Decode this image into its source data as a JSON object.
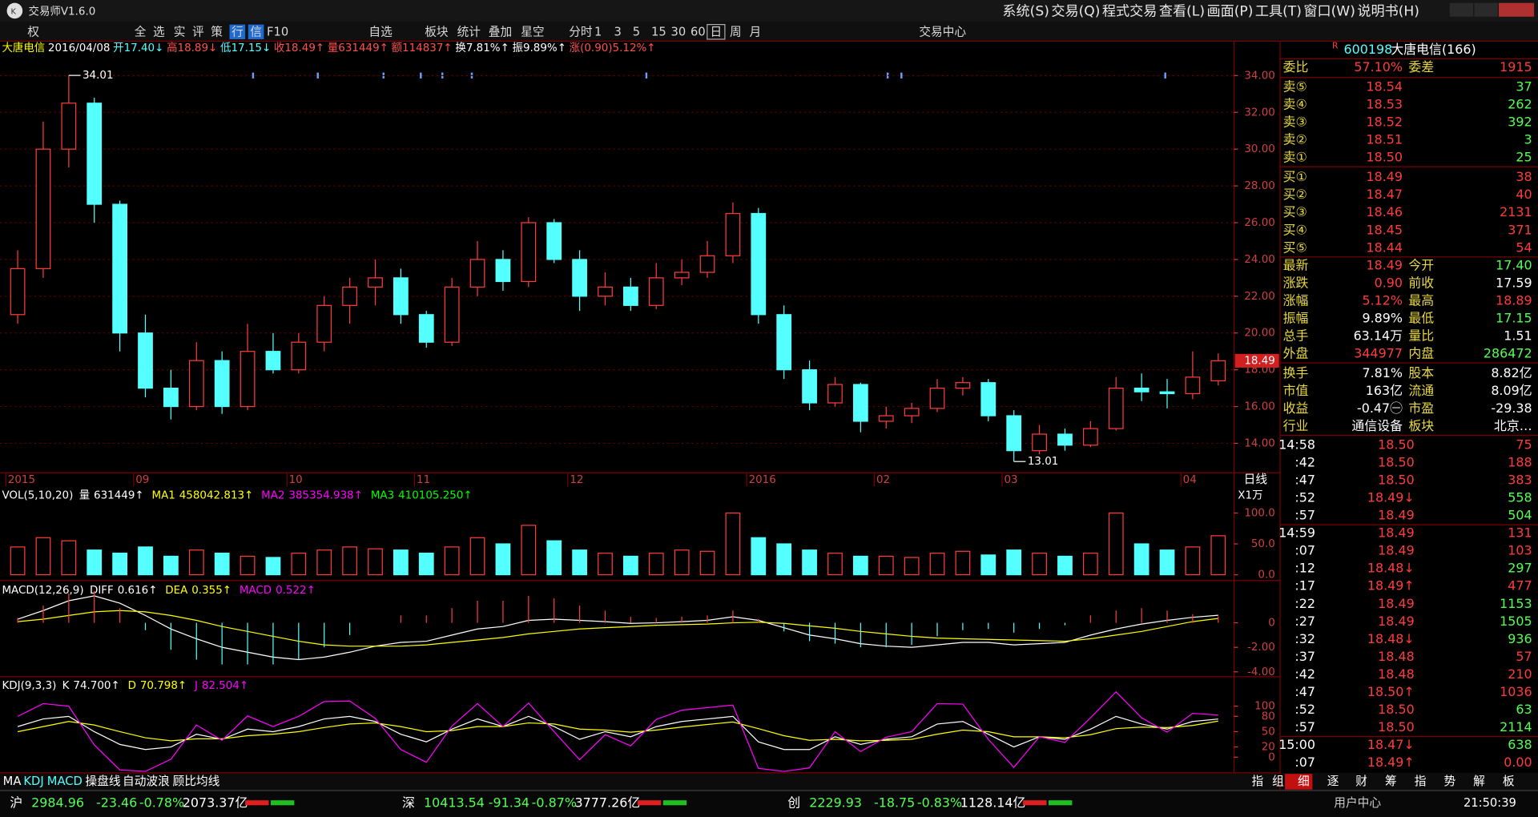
{
  "window": {
    "title": "交易师V1.6.0",
    "menu": [
      "系统(S)",
      "交易(Q)",
      "程式交易",
      "查看(L)",
      "画面(P)",
      "工具(T)",
      "窗口(W)",
      "说明书(H)"
    ]
  },
  "toolbar": [
    "权",
    "全",
    "选",
    "实",
    "评",
    "策",
    "行",
    "信",
    "F10",
    "自选",
    "板块",
    "统计",
    "叠加",
    "星空",
    "分时",
    "1",
    "3",
    "5",
    "15",
    "30",
    "60",
    "日",
    "周",
    "月",
    "交易中心"
  ],
  "chart_data": [
    {
      "type": "candlestick",
      "header": [
        {
          "text": "大唐电信",
          "color": "#ffff00"
        },
        {
          "text": "2016/04/08",
          "color": "#ffffff"
        },
        {
          "text": "开17.40↓",
          "color": "#54ffff"
        },
        {
          "text": "高18.89↓",
          "color": "#ff5050"
        },
        {
          "text": "低17.15↓",
          "color": "#54ffff"
        },
        {
          "text": "收18.49↑",
          "color": "#ff5050"
        },
        {
          "text": "量631449↑",
          "color": "#ff5050"
        },
        {
          "text": "额114837↑",
          "color": "#ff5050"
        },
        {
          "text": "换7.81%↑",
          "color": "#ffffff"
        },
        {
          "text": "振9.89%↑",
          "color": "#ffffff"
        },
        {
          "text": "涨(0.90)5.12%↑",
          "color": "#ff5050"
        }
      ],
      "period_label": "日线",
      "categories": [
        "2015",
        null,
        null,
        null,
        null,
        "09",
        null,
        null,
        null,
        null,
        null,
        "10",
        null,
        null,
        null,
        null,
        "11",
        null,
        null,
        null,
        null,
        null,
        "12",
        null,
        null,
        null,
        null,
        null,
        null,
        "2016",
        null,
        null,
        null,
        null,
        "02",
        null,
        null,
        null,
        null,
        "03",
        null,
        null,
        null,
        null,
        null,
        null,
        "04",
        null
      ],
      "open": [
        21,
        23.5,
        30,
        32.5,
        27,
        20,
        17,
        16,
        18.5,
        16,
        19,
        18,
        19.5,
        21.5,
        22.5,
        23,
        21,
        19.5,
        22.5,
        24,
        22.8,
        26,
        24,
        22,
        22.5,
        21.5,
        23,
        23.3,
        24.2,
        26.5,
        21,
        18,
        16.2,
        17.2,
        15.2,
        15.5,
        15.9,
        17,
        17.3,
        15.5,
        13.6,
        14.5,
        13.9,
        14.8,
        17,
        16.8,
        16.7,
        17.4
      ],
      "high": [
        24.5,
        31.5,
        34.01,
        32.8,
        27.2,
        21,
        18,
        19.5,
        19,
        20.5,
        20,
        20,
        22,
        23,
        24,
        23.5,
        21.2,
        23,
        25,
        24.5,
        26.3,
        26.2,
        24.5,
        23.3,
        23,
        23.8,
        24,
        25,
        27.1,
        26.8,
        21.5,
        18.5,
        17.6,
        17.3,
        16,
        16.2,
        17.5,
        17.6,
        17.5,
        15.8,
        15,
        14.8,
        15.2,
        17.6,
        17.8,
        17.5,
        19,
        18.89
      ],
      "low": [
        20.5,
        23,
        29,
        26,
        19,
        16.5,
        15.3,
        15.8,
        15.6,
        15.8,
        17.8,
        17.8,
        19,
        20.5,
        21.5,
        20.5,
        19.2,
        19.3,
        22,
        22.3,
        22.5,
        23.8,
        21.2,
        21.5,
        21.2,
        21.3,
        22.6,
        23,
        23.8,
        20.5,
        17.5,
        15.8,
        16,
        14.6,
        14.8,
        15.1,
        15.7,
        16.6,
        15.2,
        13.01,
        13.4,
        13.6,
        13.8,
        14.7,
        16.3,
        15.9,
        16.4,
        17.15
      ],
      "close": [
        23.5,
        30,
        32.5,
        27,
        20,
        17,
        16,
        18.5,
        16,
        19,
        18,
        19.5,
        21.5,
        22.5,
        23,
        21,
        19.5,
        22.5,
        24,
        22.8,
        26,
        24,
        22,
        22.5,
        21.5,
        23,
        23.3,
        24.2,
        26.5,
        21,
        18,
        16.2,
        17.2,
        15.2,
        15.5,
        15.9,
        17,
        17.3,
        15.5,
        13.6,
        14.5,
        13.9,
        14.8,
        17,
        16.8,
        16.7,
        17.6,
        18.49
      ],
      "up_color": "#ff3c3c",
      "down_color": "#54ffff",
      "ylim": [
        12.4,
        35.87
      ],
      "yticks": [
        {
          "value": 14,
          "label": "14.00"
        },
        {
          "value": 16,
          "label": "16.00"
        },
        {
          "value": 18,
          "label": "18.00"
        },
        {
          "value": 20,
          "label": "20.00"
        },
        {
          "value": 22,
          "label": "22.00"
        },
        {
          "value": 24,
          "label": "24.00"
        },
        {
          "value": 26,
          "label": "26.00"
        },
        {
          "value": 28,
          "label": "28.00"
        },
        {
          "value": 30,
          "label": "30.00"
        },
        {
          "value": 32,
          "label": "32.00"
        },
        {
          "value": 34,
          "label": "34.00"
        }
      ],
      "grid": true
    },
    {
      "type": "bar",
      "title": "VOL(5,10,20)",
      "legend": [
        {
          "name": "量",
          "value": "631449↑",
          "color": "#ffffff"
        },
        {
          "name": "MA1",
          "value": "458042.813↑",
          "color": "#ffff00"
        },
        {
          "name": "MA2",
          "value": "385354.938↑",
          "color": "#ff00ff"
        },
        {
          "name": "MA3",
          "value": "410105.250↑",
          "color": "#00ff00"
        }
      ],
      "unit_label": "X1万",
      "values": [
        45,
        60,
        55,
        40,
        35,
        45,
        30,
        40,
        35,
        30,
        28,
        35,
        40,
        45,
        42,
        40,
        35,
        45,
        60,
        50,
        80,
        55,
        40,
        35,
        30,
        35,
        40,
        38,
        100,
        60,
        50,
        40,
        35,
        30,
        30,
        28,
        35,
        38,
        32,
        40,
        35,
        30,
        35,
        100,
        50,
        40,
        45,
        63.1449
      ],
      "ylim": [
        -9.5,
        142.9
      ],
      "yticks": [
        {
          "value": 0,
          "label": "0.0"
        },
        {
          "value": 50,
          "label": "50.0"
        },
        {
          "value": 100,
          "label": "100.0"
        }
      ]
    },
    {
      "type": "line",
      "title": "MACD(12,26,9)",
      "series": [
        {
          "name": "DIFF",
          "legend_value": "0.616↑",
          "color": "#ffffff",
          "values": [
            0.3,
            1.0,
            1.8,
            2.2,
            1.6,
            0.6,
            -0.5,
            -1.3,
            -2.0,
            -2.4,
            -2.8,
            -3.0,
            -2.8,
            -2.4,
            -1.9,
            -1.6,
            -1.5,
            -1.0,
            -0.5,
            -0.3,
            0.2,
            0.3,
            0.2,
            0.1,
            -0.05,
            0.0,
            0.1,
            0.2,
            0.5,
            0.2,
            -0.4,
            -1.0,
            -1.3,
            -1.7,
            -1.9,
            -2.0,
            -1.8,
            -1.6,
            -1.6,
            -1.8,
            -1.7,
            -1.6,
            -1.0,
            -0.5,
            -0.1,
            0.2,
            0.45,
            0.616
          ]
        },
        {
          "name": "DEA",
          "legend_value": "0.355↑",
          "color": "#ffff00",
          "values": [
            0.1,
            0.3,
            0.6,
            0.9,
            1.0,
            0.9,
            0.6,
            0.2,
            -0.3,
            -0.7,
            -1.1,
            -1.5,
            -1.8,
            -1.9,
            -1.9,
            -1.9,
            -1.8,
            -1.6,
            -1.4,
            -1.2,
            -0.9,
            -0.7,
            -0.5,
            -0.4,
            -0.3,
            -0.2,
            -0.15,
            -0.1,
            0.0,
            0.05,
            -0.05,
            -0.25,
            -0.45,
            -0.7,
            -0.9,
            -1.1,
            -1.25,
            -1.3,
            -1.35,
            -1.4,
            -1.45,
            -1.5,
            -1.3,
            -1.0,
            -0.7,
            -0.3,
            0.1,
            0.355
          ]
        },
        {
          "name": "MACD",
          "legend_value": "0.522↑",
          "color": "#ff00ff",
          "style": "histogram",
          "up_color": "#ff3c3c",
          "down_color": "#54ffff",
          "values": [
            0.4,
            1.4,
            2.4,
            2.6,
            1.2,
            -0.6,
            -2.2,
            -3.0,
            -3.4,
            -3.4,
            -3.4,
            -3.0,
            -2.0,
            -1.0,
            0,
            0.6,
            0.6,
            1.2,
            1.8,
            1.8,
            2.2,
            2.0,
            1.4,
            1.0,
            0.5,
            0.4,
            0.5,
            0.6,
            1.0,
            0.3,
            -0.7,
            -1.5,
            -1.7,
            -2.0,
            -2.0,
            -1.8,
            -1.1,
            -0.6,
            -0.5,
            -0.8,
            -0.5,
            -0.2,
            0.6,
            1.0,
            1.2,
            1.0,
            0.7,
            0.522
          ]
        }
      ],
      "ylim": [
        -4.4,
        3.28
      ],
      "yticks": [
        0,
        {
          "value": -2,
          "label": "-2.00"
        },
        {
          "value": -4,
          "label": "-4.00"
        }
      ]
    },
    {
      "type": "line",
      "title": "KDJ(9,3,3)",
      "series": [
        {
          "name": "K",
          "legend_value": "74.700↑",
          "color": "#ffffff",
          "values": [
            60,
            75,
            80,
            50,
            25,
            15,
            20,
            45,
            35,
            55,
            50,
            60,
            75,
            80,
            70,
            45,
            30,
            55,
            75,
            60,
            80,
            60,
            35,
            50,
            40,
            60,
            70,
            75,
            80,
            30,
            15,
            15,
            40,
            25,
            35,
            40,
            65,
            70,
            45,
            20,
            40,
            35,
            55,
            80,
            65,
            55,
            70,
            74.7
          ]
        },
        {
          "name": "D",
          "legend_value": "70.798↑",
          "color": "#ffff00",
          "values": [
            50,
            60,
            70,
            63,
            50,
            38,
            32,
            36,
            36,
            42,
            45,
            50,
            58,
            65,
            67,
            60,
            50,
            52,
            60,
            60,
            67,
            65,
            55,
            53,
            49,
            53,
            59,
            64,
            69,
            56,
            42,
            33,
            35,
            32,
            33,
            35,
            45,
            53,
            50,
            40,
            40,
            38,
            44,
            56,
            59,
            58,
            62,
            70.798
          ]
        },
        {
          "name": "J",
          "legend_value": "82.504↑",
          "color": "#ff00ff",
          "values": [
            80,
            105,
            100,
            24,
            -25,
            -28,
            -4,
            63,
            33,
            81,
            60,
            80,
            109,
            110,
            76,
            15,
            -10,
            61,
            105,
            60,
            106,
            50,
            -5,
            44,
            22,
            74,
            92,
            97,
            102,
            -22,
            -28,
            -21,
            50,
            11,
            39,
            50,
            105,
            104,
            35,
            -20,
            40,
            29,
            77,
            128,
            77,
            49,
            86,
            82.504
          ]
        }
      ],
      "ylim": [
        -30.8,
        153.8
      ],
      "yticks": [
        0,
        20,
        50,
        80,
        100
      ]
    }
  ],
  "indicator_tabs": [
    "MA",
    "KDJ",
    "MACD",
    "操盘线",
    "自动波浪",
    "顾比均线"
  ],
  "quote_panel": {
    "code": "600198",
    "name": "大唐电信(166)",
    "ratio": {
      "l1": "委比",
      "v1": "57.10%",
      "c1": "#ff3c3c",
      "l2": "委差",
      "v2": "1915",
      "c2": "#ff3c3c"
    },
    "sell": [
      {
        "label": "卖⑤",
        "price": "18.54",
        "volume": "37"
      },
      {
        "label": "卖④",
        "price": "18.53",
        "volume": "262"
      },
      {
        "label": "卖③",
        "price": "18.52",
        "volume": "392"
      },
      {
        "label": "卖②",
        "price": "18.51",
        "volume": "3"
      },
      {
        "label": "卖①",
        "price": "18.50",
        "volume": "25"
      }
    ],
    "buy": [
      {
        "label": "买①",
        "price": "18.49",
        "volume": "38"
      },
      {
        "label": "买②",
        "price": "18.47",
        "volume": "40"
      },
      {
        "label": "买③",
        "price": "18.46",
        "volume": "2131"
      },
      {
        "label": "买④",
        "price": "18.45",
        "volume": "371"
      },
      {
        "label": "买⑤",
        "price": "18.44",
        "volume": "54"
      }
    ],
    "stats": [
      {
        "l1": "最新",
        "v1": "18.49",
        "c1": "#ff3c3c",
        "l2": "今开",
        "v2": "17.40",
        "c2": "#54ff54"
      },
      {
        "l1": "涨跌",
        "v1": "0.90",
        "c1": "#ff3c3c",
        "l2": "前收",
        "v2": "17.59",
        "c2": "#ffffff"
      },
      {
        "l1": "涨幅",
        "v1": "5.12%",
        "c1": "#ff3c3c",
        "l2": "最高",
        "v2": "18.89",
        "c2": "#ff3c3c"
      },
      {
        "l1": "振幅",
        "v1": "9.89%",
        "c1": "#ffffff",
        "l2": "最低",
        "v2": "17.15",
        "c2": "#54ff54"
      },
      {
        "l1": "总手",
        "v1": "63.14万",
        "c1": "#ffffff",
        "l2": "量比",
        "v2": "1.51",
        "c2": "#ffffff"
      },
      {
        "l1": "外盘",
        "v1": "344977",
        "c1": "#ff3c3c",
        "l2": "内盘",
        "v2": "286472",
        "c2": "#54ff54"
      }
    ],
    "info": [
      {
        "l1": "换手",
        "v1": "7.81%",
        "c1": "#ffffff",
        "l2": "股本",
        "v2": "8.82亿",
        "c2": "#ffffff"
      },
      {
        "l1": "市值",
        "v1": "163亿",
        "c1": "#ffffff",
        "l2": "流通",
        "v2": "8.09亿",
        "c2": "#ffffff"
      },
      {
        "l1": "收益",
        "v1": "-0.47㊀",
        "c1": "#ffffff",
        "l2": "市盈",
        "v2": "-29.38",
        "c2": "#ffffff"
      },
      {
        "l1": "行业",
        "v1": "通信设备",
        "c1": "#ffffff",
        "l2": "板块",
        "v2": "北京…",
        "c2": "#ffffff"
      }
    ]
  },
  "ticks": [
    {
      "time": "14:58",
      "price": "18.50",
      "volume": "75",
      "vol_color": "#ff3c3c"
    },
    {
      "time": ":42",
      "price": "18.50",
      "volume": "188",
      "vol_color": "#ff3c3c"
    },
    {
      "time": ":47",
      "price": "18.50",
      "volume": "383",
      "vol_color": "#ff3c3c"
    },
    {
      "time": ":52",
      "price": "18.49↓",
      "volume": "558",
      "vol_color": "#54ff54"
    },
    {
      "time": ":57",
      "price": "18.49",
      "volume": "504",
      "vol_color": "#54ff54"
    },
    {
      "time": "14:59",
      "price": "18.49",
      "volume": "131",
      "vol_color": "#ff3c3c"
    },
    {
      "time": ":07",
      "price": "18.49",
      "volume": "103",
      "vol_color": "#ff3c3c"
    },
    {
      "time": ":12",
      "price": "18.48↓",
      "volume": "297",
      "vol_color": "#54ff54"
    },
    {
      "time": ":17",
      "price": "18.49↑",
      "volume": "477",
      "vol_color": "#ff3c3c"
    },
    {
      "time": ":22",
      "price": "18.49",
      "volume": "1153",
      "vol_color": "#54ff54"
    },
    {
      "time": ":27",
      "price": "18.49",
      "volume": "1505",
      "vol_color": "#54ff54"
    },
    {
      "time": ":32",
      "price": "18.48↓",
      "volume": "936",
      "vol_color": "#54ff54"
    },
    {
      "time": ":37",
      "price": "18.48",
      "volume": "57",
      "vol_color": "#ff3c3c"
    },
    {
      "time": ":42",
      "price": "18.48",
      "volume": "210",
      "vol_color": "#ff3c3c"
    },
    {
      "time": ":47",
      "price": "18.50↑",
      "volume": "1036",
      "vol_color": "#ff3c3c"
    },
    {
      "time": ":52",
      "price": "18.50",
      "volume": "63",
      "vol_color": "#54ff54"
    },
    {
      "time": ":57",
      "price": "18.50",
      "volume": "2114",
      "vol_color": "#54ff54"
    },
    {
      "time": "15:00",
      "price": "18.47↓",
      "volume": "638",
      "vol_color": "#54ff54"
    },
    {
      "time": ":07",
      "price": "18.49↑",
      "volume": "0.00",
      "vol_color": "#ff3c3c"
    }
  ],
  "panel_tabs": [
    "指",
    "组",
    "细",
    "逐",
    "财",
    "筹",
    "指",
    "势",
    "解",
    "板"
  ],
  "status_bar": {
    "markets": [
      {
        "name": "沪",
        "index": "2984.96",
        "change": "-23.46",
        "pct": "-0.78%",
        "amount": "2073.37亿"
      },
      {
        "name": "深",
        "index": "10413.54",
        "change": "-91.34",
        "pct": "-0.87%",
        "amount": "3777.26亿"
      },
      {
        "name": "创",
        "index": "2229.93",
        "change": "-18.75",
        "pct": "-0.83%",
        "amount": "1128.14亿"
      }
    ],
    "user": "用户中心",
    "time": "21:50:39"
  }
}
